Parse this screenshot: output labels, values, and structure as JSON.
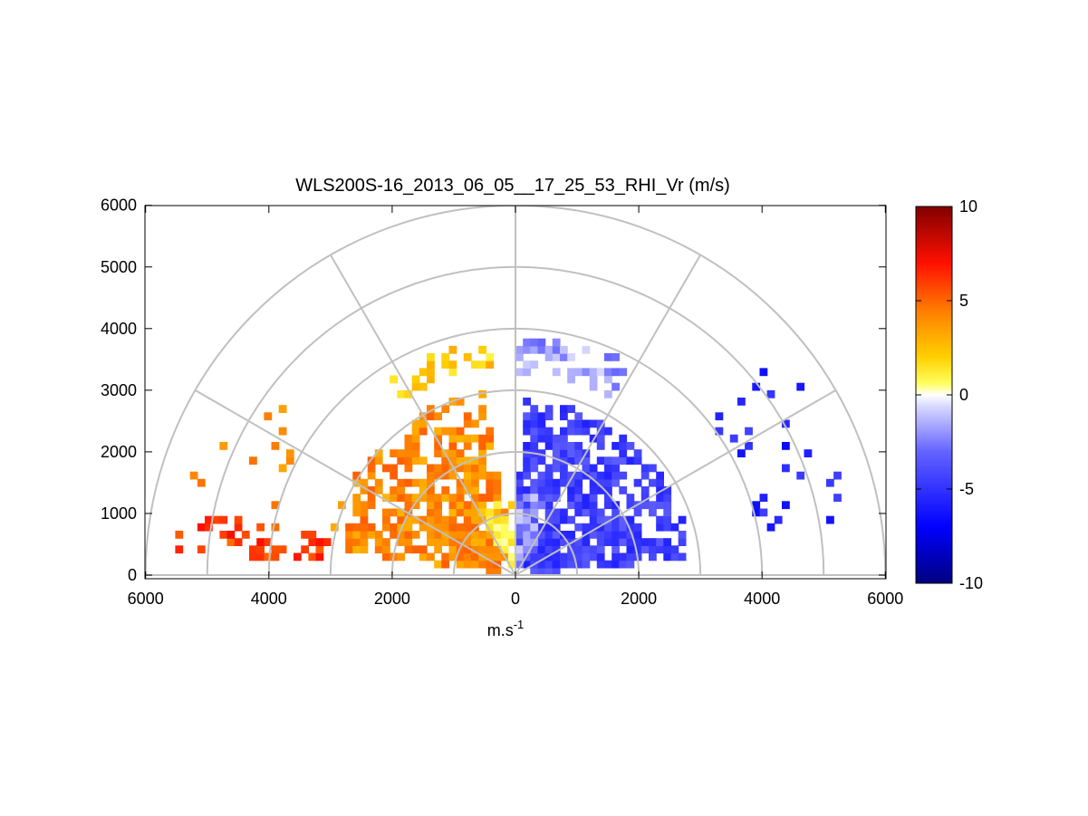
{
  "chart_data": {
    "type": "heatmap",
    "subtype": "polar-rhi-scan",
    "title": "WLS200S-16_2013_06_05__17_25_53_RHI_Vr (m/s)",
    "xlabel": "m.s",
    "xlabel_sup": "-1",
    "ylabel": "",
    "xlim": [
      -6000,
      6000
    ],
    "ylim": [
      0,
      6000
    ],
    "x_ticks": [
      -6000,
      -4000,
      -2000,
      0,
      2000,
      4000,
      6000
    ],
    "x_tick_labels": [
      "6000",
      "4000",
      "2000",
      "0",
      "2000",
      "4000",
      "6000"
    ],
    "y_ticks": [
      0,
      1000,
      2000,
      3000,
      4000,
      5000,
      6000
    ],
    "y_tick_labels": [
      "0",
      "1000",
      "2000",
      "3000",
      "4000",
      "5000",
      "6000"
    ],
    "polar_grid": {
      "range_rings": [
        1000,
        2000,
        3000,
        4000,
        5000,
        6000
      ],
      "elevation_spokes_deg": [
        0,
        30,
        60,
        90,
        120,
        150,
        180
      ]
    },
    "colorbar": {
      "range": [
        -10,
        10
      ],
      "ticks": [
        10,
        5,
        0,
        -5,
        -10
      ],
      "tick_labels": [
        "10",
        "5",
        "0",
        "-5",
        "-10"
      ],
      "colors": [
        "#000080",
        "#0000ff",
        "#8080ff",
        "#ffffff",
        "#ffff00",
        "#ff8000",
        "#ff0000",
        "#800000"
      ]
    },
    "regions": [
      {
        "name": "near-left",
        "r": [
          300,
          3050
        ],
        "elev_deg": [
          100,
          172
        ],
        "velocity": 4,
        "fill": 0.95
      },
      {
        "name": "near-left-low",
        "r": [
          3000,
          5500
        ],
        "elev_deg": [
          168,
          176
        ],
        "velocity": 6,
        "fill": 0.5
      },
      {
        "name": "near-left-inner",
        "r": [
          0,
          1200
        ],
        "elev_deg": [
          90,
          120
        ],
        "velocity": 1.2,
        "fill": 1.0
      },
      {
        "name": "near-right",
        "r": [
          200,
          2850
        ],
        "elev_deg": [
          5,
          88
        ],
        "velocity": -4.5,
        "fill": 0.95
      },
      {
        "name": "near-right-inner",
        "r": [
          0,
          1300
        ],
        "elev_deg": [
          60,
          90
        ],
        "velocity": -1.8,
        "fill": 1.0
      },
      {
        "name": "upper-left-band",
        "r": [
          3400,
          3800
        ],
        "elev_deg": [
          95,
          125
        ],
        "velocity": 2.0,
        "fill": 0.7
      },
      {
        "name": "upper-right-band",
        "r": [
          3300,
          3900
        ],
        "elev_deg": [
          62,
          90
        ],
        "velocity": -1.8,
        "fill": 0.6
      },
      {
        "name": "far-right-cells",
        "r": [
          4000,
          5600
        ],
        "elev_deg": [
          10,
          40
        ],
        "velocity": -5.5,
        "fill": 0.15
      },
      {
        "name": "far-left-cells",
        "r": [
          4000,
          5600
        ],
        "elev_deg": [
          140,
          165
        ],
        "velocity": 4,
        "fill": 0.08
      }
    ]
  }
}
